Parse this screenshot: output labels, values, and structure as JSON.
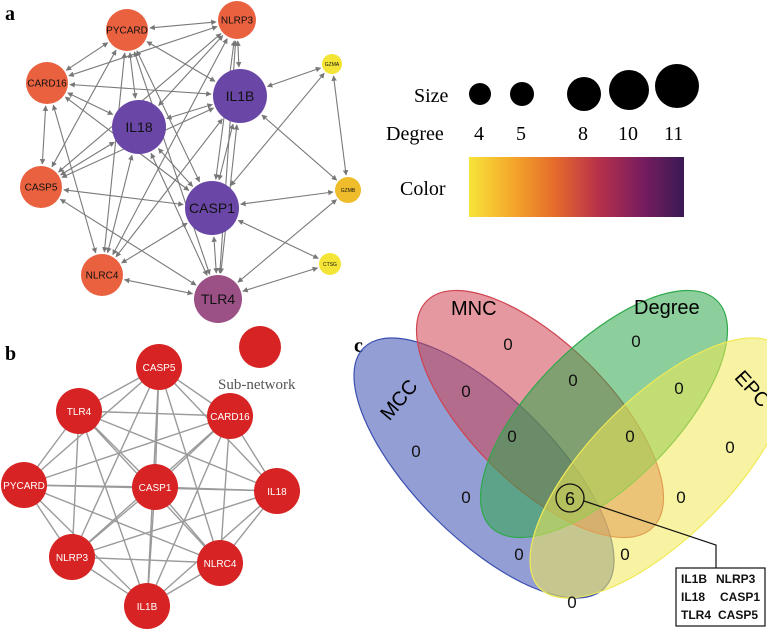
{
  "panels": {
    "a": "a",
    "b": "b",
    "c": "c"
  },
  "network_a": {
    "nodes": [
      {
        "id": "PYCARD",
        "label": "PYCARD",
        "color": "#e9613f"
      },
      {
        "id": "NLRP3",
        "label": "NLRP3",
        "color": "#e9613f"
      },
      {
        "id": "CARD16",
        "label": "CARD16",
        "color": "#e9613f"
      },
      {
        "id": "IL1B",
        "label": "IL1B",
        "color": "#6a46a6"
      },
      {
        "id": "IL18",
        "label": "IL18",
        "color": "#6a46a6"
      },
      {
        "id": "CASP5",
        "label": "CASP5",
        "color": "#e9613f"
      },
      {
        "id": "CASP1",
        "label": "CASP1",
        "color": "#6a46a6"
      },
      {
        "id": "NLRC4",
        "label": "NLRC4",
        "color": "#e9613f"
      },
      {
        "id": "TLR4",
        "label": "TLR4",
        "color": "#9b5086"
      },
      {
        "id": "GZMA",
        "label": "GZMA",
        "color": "#f4e436"
      },
      {
        "id": "GZMB",
        "label": "GZMB",
        "color": "#efbd2c"
      },
      {
        "id": "CTSG",
        "label": "CTSG",
        "color": "#f4e436"
      }
    ],
    "edges": [
      [
        "PYCARD",
        "NLRP3"
      ],
      [
        "PYCARD",
        "CARD16"
      ],
      [
        "PYCARD",
        "IL1B"
      ],
      [
        "PYCARD",
        "IL18"
      ],
      [
        "PYCARD",
        "CASP5"
      ],
      [
        "PYCARD",
        "CASP1"
      ],
      [
        "PYCARD",
        "NLRC4"
      ],
      [
        "PYCARD",
        "TLR4"
      ],
      [
        "NLRP3",
        "CARD16"
      ],
      [
        "NLRP3",
        "IL1B"
      ],
      [
        "NLRP3",
        "IL18"
      ],
      [
        "NLRP3",
        "CASP5"
      ],
      [
        "NLRP3",
        "CASP1"
      ],
      [
        "NLRP3",
        "NLRC4"
      ],
      [
        "NLRP3",
        "TLR4"
      ],
      [
        "CARD16",
        "IL1B"
      ],
      [
        "CARD16",
        "IL18"
      ],
      [
        "CARD16",
        "CASP5"
      ],
      [
        "CARD16",
        "CASP1"
      ],
      [
        "CARD16",
        "NLRC4"
      ],
      [
        "IL1B",
        "IL18"
      ],
      [
        "IL1B",
        "CASP5"
      ],
      [
        "IL1B",
        "CASP1"
      ],
      [
        "IL1B",
        "NLRC4"
      ],
      [
        "IL1B",
        "TLR4"
      ],
      [
        "IL1B",
        "GZMA"
      ],
      [
        "IL1B",
        "GZMB"
      ],
      [
        "IL18",
        "CASP5"
      ],
      [
        "IL18",
        "CASP1"
      ],
      [
        "IL18",
        "NLRC4"
      ],
      [
        "IL18",
        "TLR4"
      ],
      [
        "CASP5",
        "CASP1"
      ],
      [
        "CASP5",
        "TLR4"
      ],
      [
        "CASP1",
        "NLRC4"
      ],
      [
        "CASP1",
        "TLR4"
      ],
      [
        "CASP1",
        "GZMA"
      ],
      [
        "CASP1",
        "GZMB"
      ],
      [
        "CASP1",
        "CTSG"
      ],
      [
        "NLRC4",
        "TLR4"
      ],
      [
        "TLR4",
        "GZMB"
      ],
      [
        "TLR4",
        "CTSG"
      ],
      [
        "GZMA",
        "GZMB"
      ]
    ]
  },
  "legend": {
    "size_label": "Size",
    "degree_label": "Degree",
    "degree_values": [
      "4",
      "5",
      "8",
      "10",
      "11"
    ],
    "color_label": "Color",
    "gradient": [
      "#f7e43a",
      "#f4a82a",
      "#e56b2c",
      "#b8314a",
      "#7a1d5f",
      "#3a1a55"
    ]
  },
  "network_b": {
    "nodes": [
      "CASP5",
      "TLR4",
      "CARD16",
      "PYCARD",
      "CASP1",
      "IL18",
      "NLRP3",
      "NLRC4",
      "IL1B"
    ],
    "color": "#d72323",
    "legend_label": "Sub-network"
  },
  "venn": {
    "sets": [
      {
        "name": "MCC",
        "color": "#3b4fb0"
      },
      {
        "name": "MNC",
        "color": "#cf4450"
      },
      {
        "name": "Degree",
        "color": "#2fa84a"
      },
      {
        "name": "EPC",
        "color": "#f0ea55"
      }
    ],
    "counts": {
      "mcc_only": "0",
      "mnc_only": "0",
      "degree_only": "0",
      "epc_only": "0",
      "mcc_mnc": "0",
      "mnc_degree": "0",
      "degree_epc": "0",
      "mcc_mnc_degree": "0",
      "mnc_degree_epc": "0",
      "mcc_degree": "0",
      "mnc_epc": "0",
      "mcc_degree_epc": "0",
      "mcc_mnc_epc": "0",
      "mcc_epc": "0",
      "all": "6"
    },
    "hub_genes": [
      [
        "IL1B",
        "NLRP3"
      ],
      [
        "IL18",
        "CASP1"
      ],
      [
        "TLR4",
        "CASP5"
      ]
    ]
  }
}
